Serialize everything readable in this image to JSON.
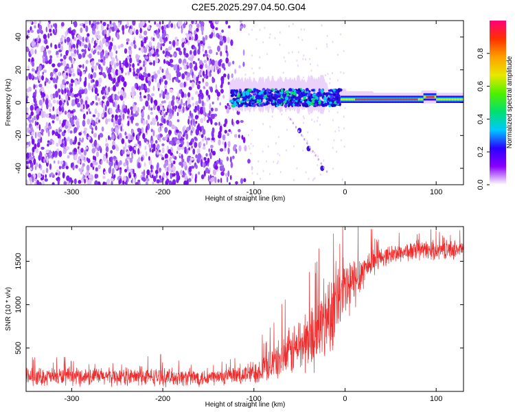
{
  "figure_title": "C2E5.2025.297.04.50.G04",
  "chart_data": [
    {
      "type": "heatmap",
      "xlabel": "Height of straight line (km)",
      "ylabel": "Frequency (Hz)",
      "xlim": [
        -350,
        130
      ],
      "ylim": [
        -50,
        50
      ],
      "x_ticks": [
        -300,
        -200,
        -100,
        0,
        100
      ],
      "y_ticks": [
        -40,
        -20,
        0,
        20,
        40
      ],
      "colorbar": {
        "label": "Normalized spectral amplitude",
        "range": [
          0,
          1
        ],
        "ticks": [
          0.0,
          0.2,
          0.4,
          0.6,
          0.8
        ],
        "tick_labels": [
          "0.0",
          "0.2",
          "0.4",
          "0.6",
          "0.8"
        ],
        "colormap": [
          "#ffffff",
          "#8a00ff",
          "#2a00ff",
          "#00c8ff",
          "#00e070",
          "#4ff000",
          "#e8e800",
          "#ffa000",
          "#ff3000",
          "#ff007a"
        ]
      },
      "features": [
        {
          "name": "noise region",
          "x_range": [
            -350,
            -110
          ],
          "freq_range": [
            -50,
            50
          ],
          "amplitude": 0.1
        },
        {
          "name": "carrier line",
          "x_range": [
            -120,
            130
          ],
          "freq_center": 2,
          "amplitude": 0.8
        },
        {
          "name": "secondary trace",
          "points": [
            [
              -50,
              -17
            ],
            [
              -40,
              -28
            ],
            [
              -25,
              -40
            ]
          ]
        }
      ]
    },
    {
      "type": "line",
      "xlabel": "Height of straight line (km)",
      "ylabel": "SNR (10 * v/v)",
      "xlim": [
        -350,
        130
      ],
      "ylim": [
        0,
        1900
      ],
      "x_ticks": [
        -300,
        -200,
        -100,
        0,
        100
      ],
      "y_ticks": [
        500,
        1000,
        1500
      ],
      "series": [
        {
          "name": "SNR",
          "color": "#ef2b2b",
          "baseline": {
            "x": [
              -350,
              -300,
              -250,
              -200,
              -150,
              -120,
              -100,
              -80,
              -60,
              -40,
              -30,
              -20,
              -10,
              0,
              10,
              20,
              30,
              40,
              60,
              80,
              100,
              130
            ],
            "y": [
              170,
              170,
              170,
              165,
              160,
              170,
              220,
              320,
              450,
              600,
              700,
              850,
              1000,
              1150,
              1250,
              1400,
              1500,
              1550,
              1600,
              1620,
              1630,
              1640
            ]
          },
          "noise_amplitude": {
            "x": [
              -350,
              -120,
              -80,
              -40,
              -20,
              0,
              20,
              40,
              130
            ],
            "y": [
              120,
              120,
              220,
              450,
              550,
              500,
              250,
              130,
              130
            ]
          }
        }
      ]
    }
  ]
}
